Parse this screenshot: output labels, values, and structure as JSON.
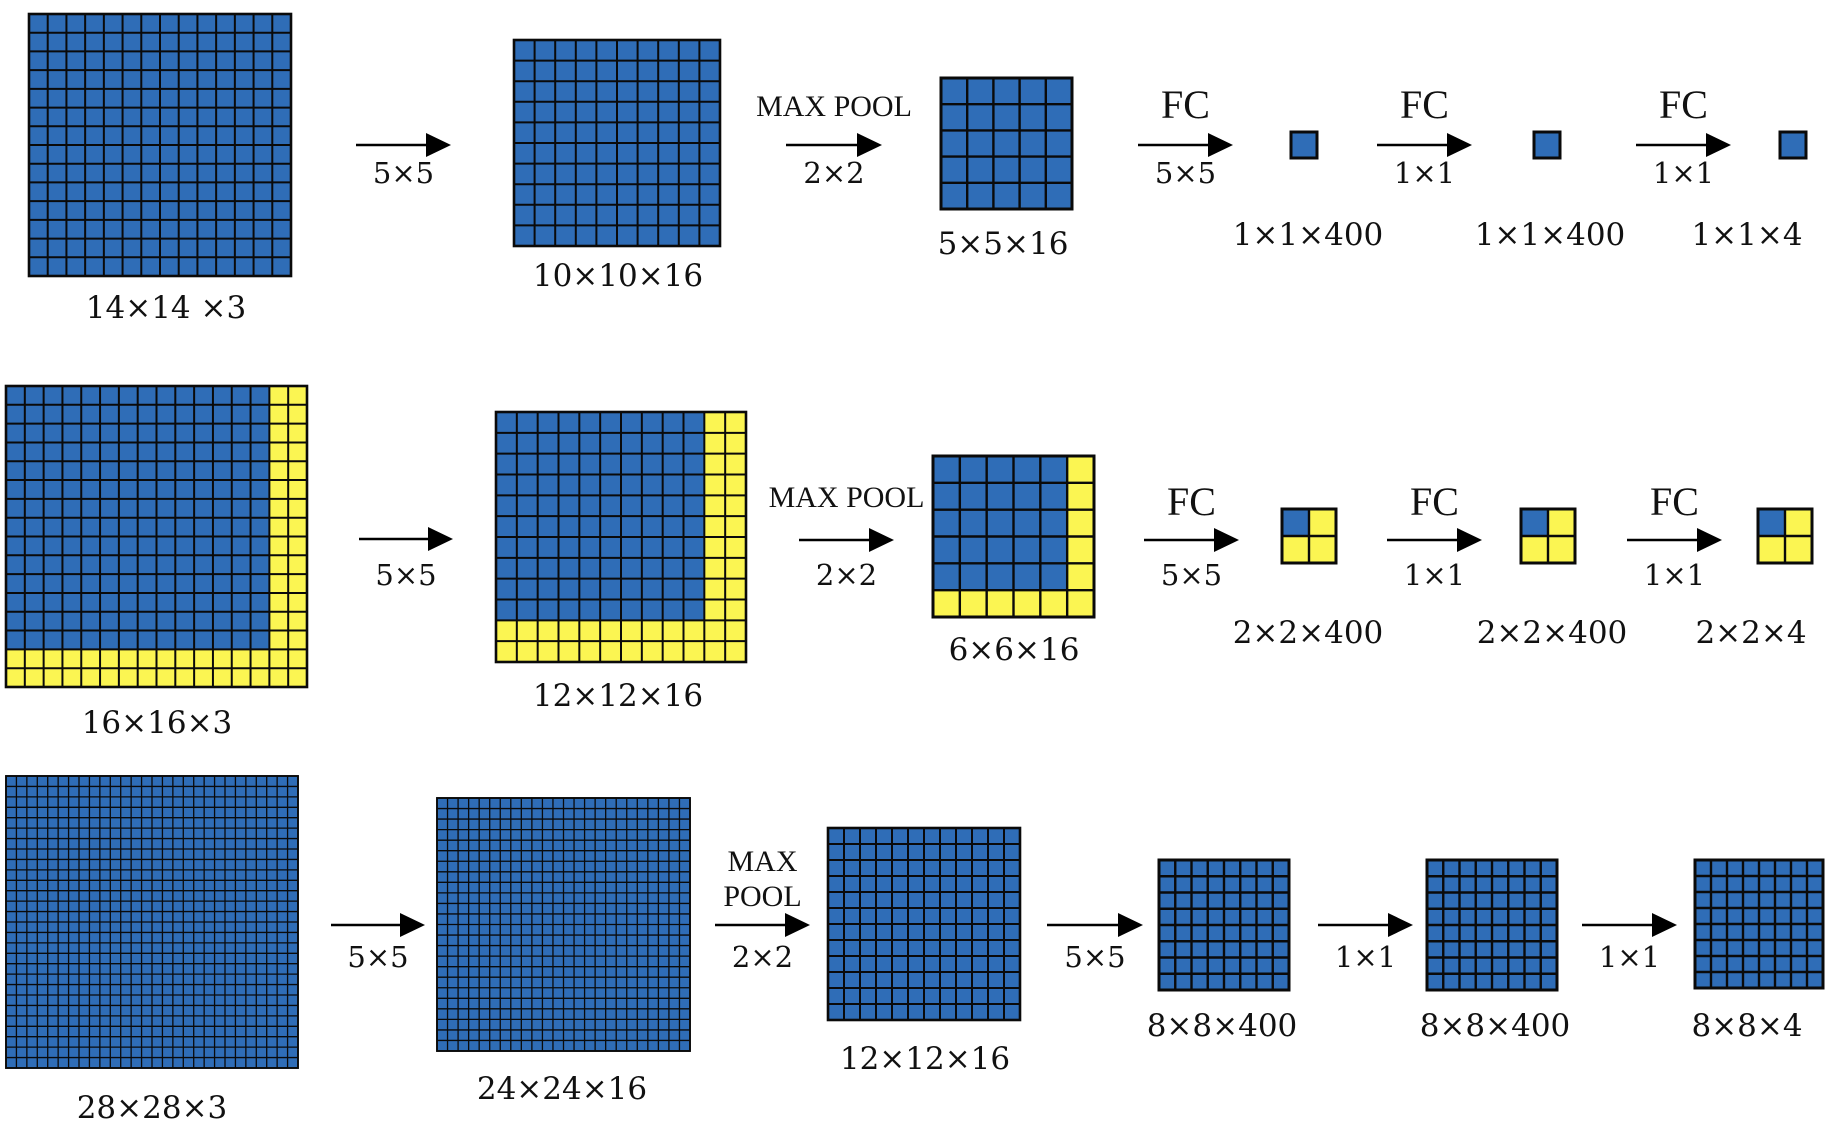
{
  "colors": {
    "blue": "#2f6db7",
    "yellow": "#fbf552",
    "line": "#0a0a0a",
    "arrow": "#000000"
  },
  "rows": [
    {
      "grids": [
        {
          "label": "14×14 ×3",
          "n": 14,
          "blue_n": 14
        },
        {
          "label": "10×10×16",
          "n": 10,
          "blue_n": 10
        },
        {
          "label": "5×5×16",
          "n": 5,
          "blue_n": 5
        },
        {
          "label": "1×1×400",
          "n": 1,
          "blue_n": 1
        },
        {
          "label": "1×1×400",
          "n": 1,
          "blue_n": 1
        },
        {
          "label": "1×1×4",
          "n": 1,
          "blue_n": 1
        }
      ],
      "arrows": [
        {
          "above": [],
          "below": "5×5"
        },
        {
          "above": [
            "MAX POOL"
          ],
          "below": "2×2"
        },
        {
          "above": [
            "FC"
          ],
          "below": "5×5"
        },
        {
          "above": [
            "FC"
          ],
          "below": "1×1"
        },
        {
          "above": [
            "FC"
          ],
          "below": "1×1"
        }
      ]
    },
    {
      "grids": [
        {
          "label": "16×16×3",
          "n": 16,
          "blue_n": 14
        },
        {
          "label": "12×12×16",
          "n": 12,
          "blue_n": 10
        },
        {
          "label": "6×6×16",
          "n": 6,
          "blue_n": 5
        },
        {
          "label": "2×2×400",
          "n": 2,
          "blue_n": 1
        },
        {
          "label": "2×2×400",
          "n": 2,
          "blue_n": 1
        },
        {
          "label": "2×2×4",
          "n": 2,
          "blue_n": 1
        }
      ],
      "arrows": [
        {
          "above": [],
          "below": "5×5"
        },
        {
          "above": [
            "MAX POOL"
          ],
          "below": "2×2"
        },
        {
          "above": [
            "FC"
          ],
          "below": "5×5"
        },
        {
          "above": [
            "FC"
          ],
          "below": "1×1"
        },
        {
          "above": [
            "FC"
          ],
          "below": "1×1"
        }
      ]
    },
    {
      "grids": [
        {
          "label": "28×28×3",
          "n": 28,
          "blue_n": 28
        },
        {
          "label": "24×24×16",
          "n": 24,
          "blue_n": 24
        },
        {
          "label": "12×12×16",
          "n": 12,
          "blue_n": 12
        },
        {
          "label": "8×8×400",
          "n": 8,
          "blue_n": 8
        },
        {
          "label": "8×8×400",
          "n": 8,
          "blue_n": 8
        },
        {
          "label": "8×8×4",
          "n": 8,
          "blue_n": 8
        }
      ],
      "arrows": [
        {
          "above": [],
          "below": "5×5"
        },
        {
          "above": [
            "MAX",
            "POOL"
          ],
          "below": "2×2"
        },
        {
          "above": [],
          "below": "5×5"
        },
        {
          "above": [],
          "below": "1×1"
        },
        {
          "above": [],
          "below": "1×1"
        }
      ]
    }
  ]
}
